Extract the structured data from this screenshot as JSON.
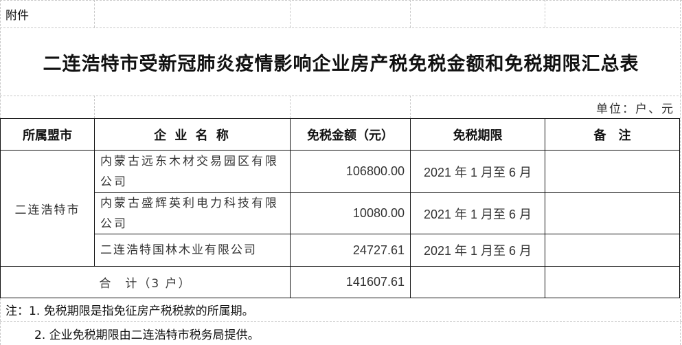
{
  "attachment_label": "附件",
  "title": "二连浩特市受新冠肺炎疫情影响企业房产税免税金额和免税期限汇总表",
  "unit": "单位：户、元",
  "table": {
    "headers": [
      "所属盟市",
      "企 业 名 称",
      "免税金额（元）",
      "免税期限",
      "备　注"
    ],
    "city": "二连浩特市",
    "rows": [
      {
        "name": "内蒙古远东木材交易园区有限公司",
        "amount": "106800.00",
        "period": "2021 年 1 月至 6 月",
        "remark": ""
      },
      {
        "name": "内蒙古盛辉英利电力科技有限公司",
        "amount": "10080.00",
        "period": "2021 年 1 月至 6 月",
        "remark": ""
      },
      {
        "name": "二连浩特国林木业有限公司",
        "amount": "24727.61",
        "period": "2021 年 1 月至 6 月",
        "remark": ""
      }
    ],
    "total_label": "合　计（3 户）",
    "total_amount": "141607.61"
  },
  "notes": [
    "注：1. 免税期限是指免征房产税税款的所属期。",
    "2. 企业免税期限由二连浩特市税务局提供。"
  ]
}
